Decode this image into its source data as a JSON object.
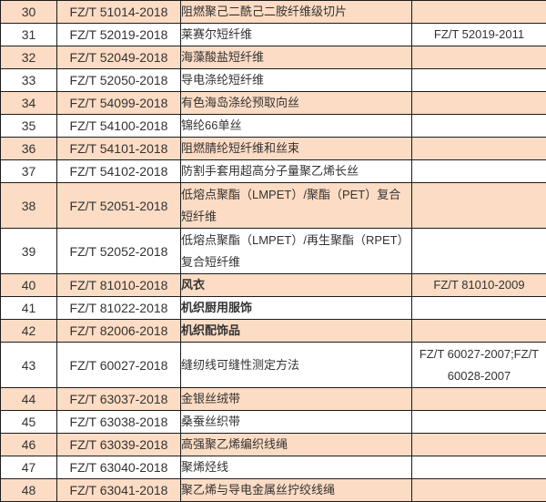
{
  "colors": {
    "row_shade": "#fcdcc4",
    "row_plain": "#ffffff",
    "border": "#1c1c1c",
    "text": "#333333"
  },
  "table": {
    "column_semantics": [
      "row-number",
      "new-standard-code",
      "standard-title",
      "replaced-standard-code"
    ],
    "rows": [
      {
        "num": "30",
        "code": "FZ/T 51014-2018",
        "title": "阻燃聚己二酰己二胺纤维级切片",
        "replaced": "",
        "shade": true,
        "bold": false,
        "tall": false
      },
      {
        "num": "31",
        "code": "FZ/T 52019-2018",
        "title": "莱赛尔短纤维",
        "replaced": "FZ/T 52019-2011",
        "shade": false,
        "bold": false,
        "tall": false
      },
      {
        "num": "32",
        "code": "FZ/T 52049-2018",
        "title": "海藻酸盐短纤维",
        "replaced": "",
        "shade": true,
        "bold": false,
        "tall": false
      },
      {
        "num": "33",
        "code": "FZ/T 52050-2018",
        "title": "导电涤纶短纤维",
        "replaced": "",
        "shade": false,
        "bold": false,
        "tall": false
      },
      {
        "num": "34",
        "code": "FZ/T 54099-2018",
        "title": "有色海岛涤纶预取向丝",
        "replaced": "",
        "shade": true,
        "bold": false,
        "tall": false
      },
      {
        "num": "35",
        "code": "FZ/T 54100-2018",
        "title": "锦纶66单丝",
        "replaced": "",
        "shade": false,
        "bold": false,
        "tall": false
      },
      {
        "num": "36",
        "code": "FZ/T 54101-2018",
        "title": "阻燃腈纶短纤维和丝束",
        "replaced": "",
        "shade": true,
        "bold": false,
        "tall": false
      },
      {
        "num": "37",
        "code": "FZ/T 54102-2018",
        "title": "防割手套用超高分子量聚乙烯长丝",
        "replaced": "",
        "shade": false,
        "bold": false,
        "tall": false
      },
      {
        "num": "38",
        "code": "FZ/T 52051-2018",
        "title": "低熔点聚酯（LMPET）/聚酯（PET）复合短纤维",
        "replaced": "",
        "shade": true,
        "bold": false,
        "tall": true
      },
      {
        "num": "39",
        "code": "FZ/T 52052-2018",
        "title": "低熔点聚酯（LMPET）/再生聚酯（RPET）复合短纤维",
        "replaced": "",
        "shade": false,
        "bold": false,
        "tall": true
      },
      {
        "num": "40",
        "code": "FZ/T 81010-2018",
        "title": "风衣",
        "replaced": "FZ/T 81010-2009",
        "shade": true,
        "bold": true,
        "tall": false
      },
      {
        "num": "41",
        "code": "FZ/T 81022-2018",
        "title": "机织厨用服饰",
        "replaced": "",
        "shade": false,
        "bold": true,
        "tall": false
      },
      {
        "num": "42",
        "code": "FZ/T 82006-2018",
        "title": "机织配饰品",
        "replaced": "",
        "shade": true,
        "bold": true,
        "tall": false
      },
      {
        "num": "43",
        "code": "FZ/T 60027-2018",
        "title": "缝纫线可缝性测定方法",
        "replaced": "FZ/T 60027-2007;FZ/T 60028-2007",
        "shade": false,
        "bold": false,
        "tall": true
      },
      {
        "num": "44",
        "code": "FZ/T 63037-2018",
        "title": "金银丝绒带",
        "replaced": "",
        "shade": true,
        "bold": false,
        "tall": false
      },
      {
        "num": "45",
        "code": "FZ/T 63038-2018",
        "title": "桑蚕丝织带",
        "replaced": "",
        "shade": false,
        "bold": false,
        "tall": false
      },
      {
        "num": "46",
        "code": "FZ/T 63039-2018",
        "title": "高强聚乙烯编织线绳",
        "replaced": "",
        "shade": true,
        "bold": false,
        "tall": false
      },
      {
        "num": "47",
        "code": "FZ/T 63040-2018",
        "title": "聚烯烃线",
        "replaced": "",
        "shade": false,
        "bold": false,
        "tall": false
      },
      {
        "num": "48",
        "code": "FZ/T 63041-2018",
        "title": "聚乙烯与导电金属丝拧绞线绳",
        "replaced": "",
        "shade": true,
        "bold": false,
        "tall": false
      }
    ]
  }
}
